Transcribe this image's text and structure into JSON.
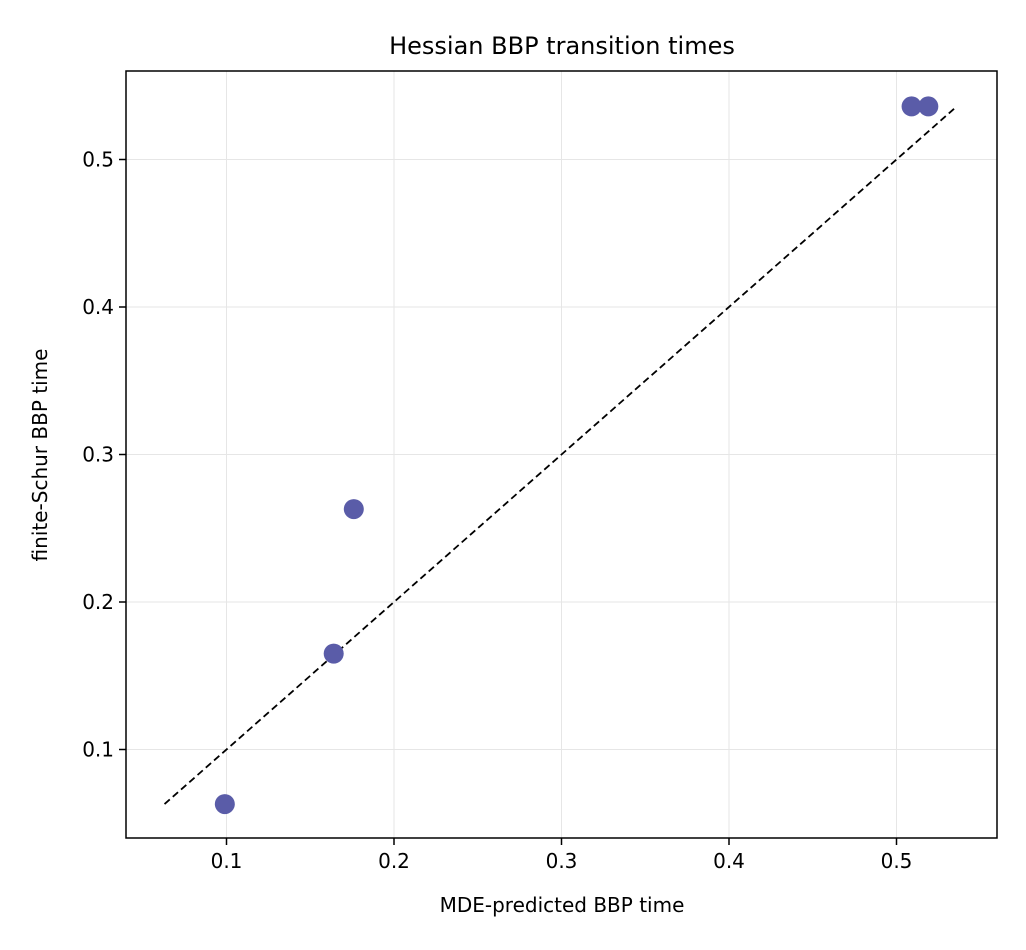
{
  "chart_data": {
    "type": "scatter",
    "title": "Hessian BBP transition times",
    "xlabel": "MDE-predicted BBP time",
    "ylabel": "finite-Schur BBP time",
    "xlim": [
      0.04,
      0.56
    ],
    "ylim": [
      0.04,
      0.56
    ],
    "x_ticks": [
      0.1,
      0.2,
      0.3,
      0.4,
      0.5
    ],
    "y_ticks": [
      0.1,
      0.2,
      0.3,
      0.4,
      0.5
    ],
    "x_tick_labels": [
      "0.1",
      "0.2",
      "0.3",
      "0.4",
      "0.5"
    ],
    "y_tick_labels": [
      "0.1",
      "0.2",
      "0.3",
      "0.4",
      "0.5"
    ],
    "grid": true,
    "points": [
      {
        "x": 0.099,
        "y": 0.063
      },
      {
        "x": 0.164,
        "y": 0.165
      },
      {
        "x": 0.176,
        "y": 0.263
      },
      {
        "x": 0.509,
        "y": 0.536
      },
      {
        "x": 0.519,
        "y": 0.536
      }
    ],
    "reference_line": {
      "x": [
        0.063,
        0.536
      ],
      "y": [
        0.063,
        0.536
      ],
      "style": "dashed",
      "color": "#000000"
    },
    "point_color": "#5a5ca8"
  }
}
